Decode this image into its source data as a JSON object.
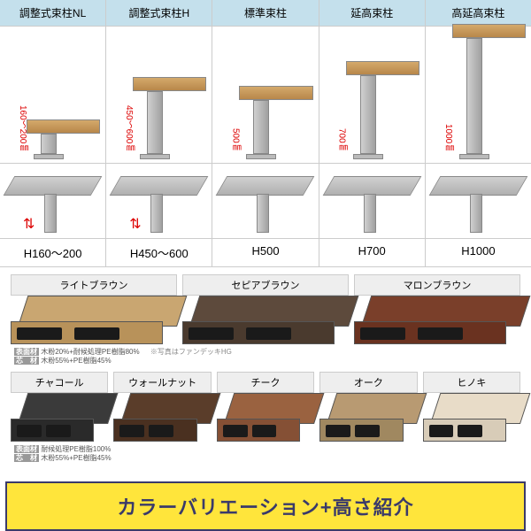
{
  "pillars": [
    {
      "header": "調整式束柱NL",
      "heightLabel": "160〜200㎜",
      "bottomLabel": "H160〜200",
      "topH": 32,
      "adjustable": true
    },
    {
      "header": "調整式束柱H",
      "heightLabel": "450〜600㎜",
      "bottomLabel": "H450〜600",
      "topH": 80,
      "adjustable": true
    },
    {
      "header": "標準束柱",
      "heightLabel": "500㎜",
      "bottomLabel": "H500",
      "topH": 70,
      "adjustable": false
    },
    {
      "header": "延高束柱",
      "heightLabel": "700㎜",
      "bottomLabel": "H700",
      "topH": 98,
      "adjustable": false
    },
    {
      "header": "高延高束柱",
      "heightLabel": "1000㎜",
      "bottomLabel": "H1000",
      "topH": 140,
      "adjustable": false
    }
  ],
  "colors_row1": [
    {
      "label": "ライトブラウン",
      "top": "#c9a671",
      "side": "#b8925a"
    },
    {
      "label": "セピアブラウン",
      "top": "#5d4a3c",
      "side": "#4a3a2e"
    },
    {
      "label": "マロンブラウン",
      "top": "#7a3f2a",
      "side": "#6a3220"
    }
  ],
  "colors_row2": [
    {
      "label": "チャコール",
      "top": "#3a3a3a",
      "side": "#2a2a2a"
    },
    {
      "label": "ウォールナット",
      "top": "#5a3d2a",
      "side": "#4a3020"
    },
    {
      "label": "チーク",
      "top": "#9a6240",
      "side": "#855035"
    },
    {
      "label": "オーク",
      "top": "#b89a72",
      "side": "#a08860"
    },
    {
      "label": "ヒノキ",
      "top": "#e8dcc8",
      "side": "#d8ccb8"
    }
  ],
  "material1": {
    "surface": "木粉20%+耐候処理PE樹脂80%",
    "core": "木粉55%+PE樹脂45%"
  },
  "material2": {
    "surface": "耐候処理PE樹脂100%",
    "core": "木粉55%+PE樹脂45%"
  },
  "photo_note": "※写真はファンデッキHG",
  "banner": "カラーバリエーション+高さ紹介",
  "labels": {
    "surface": "表面材",
    "core": "芯　材"
  }
}
